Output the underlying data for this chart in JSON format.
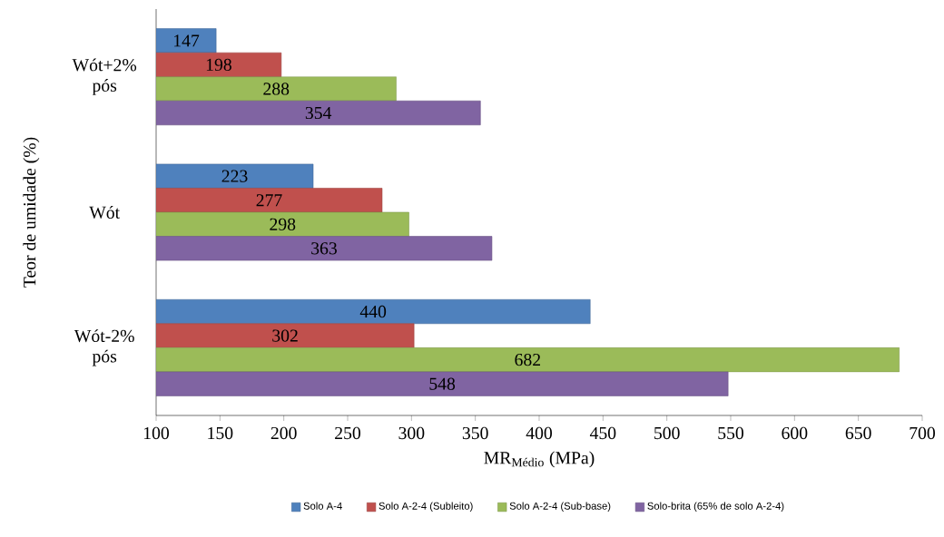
{
  "chart_data": {
    "type": "bar",
    "orientation": "horizontal",
    "xlabel": "MR$_{Médio}$ (MPa)",
    "ylabel": "Teor de umidade (%)",
    "categories": [
      "Wót+2% pós",
      "Wót",
      "Wót-2% pós"
    ],
    "series": [
      {
        "name": "Solo A-4",
        "color": "#4f81bd",
        "values": [
          147,
          223,
          440
        ]
      },
      {
        "name": "Solo A-2-4 (Subleito)",
        "color": "#c0504d",
        "values": [
          198,
          277,
          302
        ]
      },
      {
        "name": "Solo A-2-4 (Sub-base)",
        "color": "#9bbb59",
        "values": [
          288,
          298,
          682
        ]
      },
      {
        "name": "Solo-brita (65% de solo A-2-4)",
        "color": "#8064a2",
        "values": [
          354,
          363,
          548
        ]
      }
    ],
    "xlim": [
      100,
      700
    ],
    "xticks": [
      100,
      150,
      200,
      250,
      300,
      350,
      400,
      450,
      500,
      550,
      600,
      650,
      700
    ],
    "data_labels": true,
    "legend": "bottom",
    "grid": false
  }
}
